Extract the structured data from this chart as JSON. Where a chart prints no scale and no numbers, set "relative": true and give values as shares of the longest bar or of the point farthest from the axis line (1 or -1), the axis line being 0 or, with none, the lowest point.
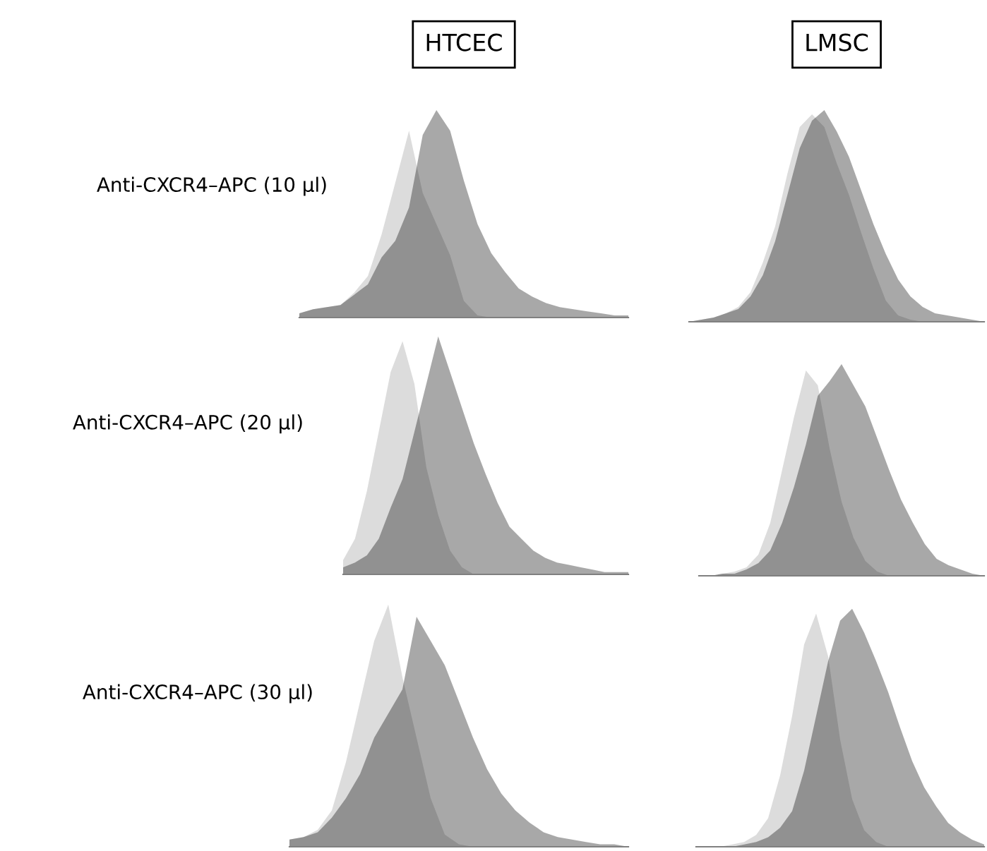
{
  "chart_data": [
    {
      "type": "area",
      "relative": true,
      "title": "HTCEC",
      "ylabel": "Anti-CXCR4–APC (10 µl)",
      "categories": [
        null,
        null,
        null,
        null,
        null,
        null,
        null,
        null,
        null,
        null,
        null,
        null,
        null,
        null,
        null,
        null,
        null,
        null,
        null,
        null,
        null,
        null,
        null,
        null,
        null
      ],
      "series": [
        {
          "color": "#dcdcdc",
          "values": [
            0.02,
            0.04,
            0.05,
            0.06,
            0.12,
            0.2,
            0.4,
            0.65,
            0.9,
            0.6,
            0.45,
            0.3,
            0.08,
            0.01,
            0,
            0,
            0,
            0,
            0,
            0,
            0,
            0,
            0,
            0,
            0
          ]
        },
        {
          "color": "#a8a8a8",
          "values": [
            0.02,
            0.04,
            0.05,
            0.06,
            0.11,
            0.16,
            0.29,
            0.37,
            0.53,
            0.88,
            1.0,
            0.9,
            0.66,
            0.45,
            0.31,
            0.22,
            0.14,
            0.1,
            0.07,
            0.05,
            0.04,
            0.03,
            0.02,
            0.01,
            0.01
          ]
        }
      ]
    },
    {
      "type": "area",
      "relative": true,
      "title": "LMSC",
      "categories": [
        null,
        null,
        null,
        null,
        null,
        null,
        null,
        null,
        null,
        null,
        null,
        null,
        null,
        null,
        null,
        null,
        null,
        null,
        null,
        null,
        null,
        null,
        null,
        null,
        null
      ],
      "series": [
        {
          "color": "#dcdcdc",
          "values": [
            0,
            0.01,
            0.02,
            0.04,
            0.07,
            0.14,
            0.28,
            0.45,
            0.7,
            0.92,
            0.98,
            0.92,
            0.75,
            0.6,
            0.42,
            0.25,
            0.1,
            0.03,
            0.01,
            0,
            0,
            0,
            0,
            0,
            0
          ]
        },
        {
          "color": "#a8a8a8",
          "values": [
            0,
            0.01,
            0.02,
            0.04,
            0.06,
            0.12,
            0.22,
            0.38,
            0.6,
            0.82,
            0.95,
            1.0,
            0.9,
            0.78,
            0.62,
            0.46,
            0.32,
            0.2,
            0.12,
            0.07,
            0.04,
            0.03,
            0.02,
            0.01,
            0
          ]
        }
      ]
    },
    {
      "type": "area",
      "relative": true,
      "ylabel": "Anti-CXCR4–APC (20 µl)",
      "categories": [
        null,
        null,
        null,
        null,
        null,
        null,
        null,
        null,
        null,
        null,
        null,
        null,
        null,
        null,
        null,
        null,
        null,
        null,
        null,
        null,
        null,
        null,
        null,
        null,
        null
      ],
      "series": [
        {
          "color": "#dcdcdc",
          "values": [
            0.06,
            0.15,
            0.35,
            0.6,
            0.85,
            0.98,
            0.8,
            0.45,
            0.25,
            0.1,
            0.03,
            0,
            0,
            0,
            0,
            0,
            0,
            0,
            0,
            0,
            0,
            0,
            0,
            0,
            0
          ]
        },
        {
          "color": "#a8a8a8",
          "values": [
            0.03,
            0.05,
            0.08,
            0.15,
            0.28,
            0.4,
            0.6,
            0.8,
            1.0,
            0.85,
            0.7,
            0.55,
            0.42,
            0.3,
            0.2,
            0.15,
            0.1,
            0.07,
            0.05,
            0.04,
            0.03,
            0.02,
            0.01,
            0.01,
            0.01
          ]
        }
      ]
    },
    {
      "type": "area",
      "relative": true,
      "categories": [
        null,
        null,
        null,
        null,
        null,
        null,
        null,
        null,
        null,
        null,
        null,
        null,
        null,
        null,
        null,
        null,
        null,
        null,
        null,
        null,
        null,
        null,
        null,
        null,
        null
      ],
      "series": [
        {
          "color": "#dcdcdc",
          "values": [
            0,
            0,
            0.01,
            0.02,
            0.04,
            0.1,
            0.25,
            0.5,
            0.75,
            0.97,
            0.9,
            0.6,
            0.35,
            0.18,
            0.07,
            0.02,
            0,
            0,
            0,
            0,
            0,
            0,
            0,
            0,
            0
          ]
        },
        {
          "color": "#a8a8a8",
          "values": [
            0,
            0,
            0.01,
            0.01,
            0.03,
            0.06,
            0.12,
            0.25,
            0.42,
            0.62,
            0.85,
            0.92,
            1.0,
            0.9,
            0.8,
            0.65,
            0.5,
            0.36,
            0.25,
            0.15,
            0.08,
            0.05,
            0.03,
            0.01,
            0
          ]
        }
      ]
    },
    {
      "type": "area",
      "relative": true,
      "ylabel": "Anti-CXCR4–APC (30 µl)",
      "categories": [
        null,
        null,
        null,
        null,
        null,
        null,
        null,
        null,
        null,
        null,
        null,
        null,
        null,
        null,
        null,
        null,
        null,
        null,
        null,
        null,
        null,
        null,
        null,
        null,
        null
      ],
      "series": [
        {
          "color": "#dcdcdc",
          "values": [
            0.03,
            0.04,
            0.07,
            0.15,
            0.35,
            0.6,
            0.85,
            1.0,
            0.7,
            0.45,
            0.2,
            0.05,
            0.01,
            0,
            0,
            0,
            0,
            0,
            0,
            0,
            0,
            0,
            0,
            0,
            0
          ]
        },
        {
          "color": "#a8a8a8",
          "values": [
            0.03,
            0.04,
            0.06,
            0.12,
            0.2,
            0.3,
            0.45,
            0.55,
            0.65,
            0.95,
            0.85,
            0.75,
            0.6,
            0.45,
            0.32,
            0.22,
            0.15,
            0.1,
            0.06,
            0.04,
            0.03,
            0.02,
            0.01,
            0.01,
            0
          ]
        }
      ]
    },
    {
      "type": "area",
      "relative": true,
      "categories": [
        null,
        null,
        null,
        null,
        null,
        null,
        null,
        null,
        null,
        null,
        null,
        null,
        null,
        null,
        null,
        null,
        null,
        null,
        null,
        null,
        null,
        null,
        null,
        null,
        null
      ],
      "series": [
        {
          "color": "#dcdcdc",
          "values": [
            0,
            0,
            0,
            0.01,
            0.02,
            0.05,
            0.12,
            0.3,
            0.55,
            0.85,
            0.98,
            0.8,
            0.45,
            0.2,
            0.07,
            0.02,
            0,
            0,
            0,
            0,
            0,
            0,
            0,
            0,
            0
          ]
        },
        {
          "color": "#a8a8a8",
          "values": [
            0,
            0,
            0,
            0,
            0.01,
            0.02,
            0.04,
            0.08,
            0.15,
            0.32,
            0.55,
            0.78,
            0.95,
            1.0,
            0.9,
            0.78,
            0.65,
            0.5,
            0.36,
            0.25,
            0.17,
            0.1,
            0.06,
            0.03,
            0.01
          ]
        }
      ]
    }
  ]
}
